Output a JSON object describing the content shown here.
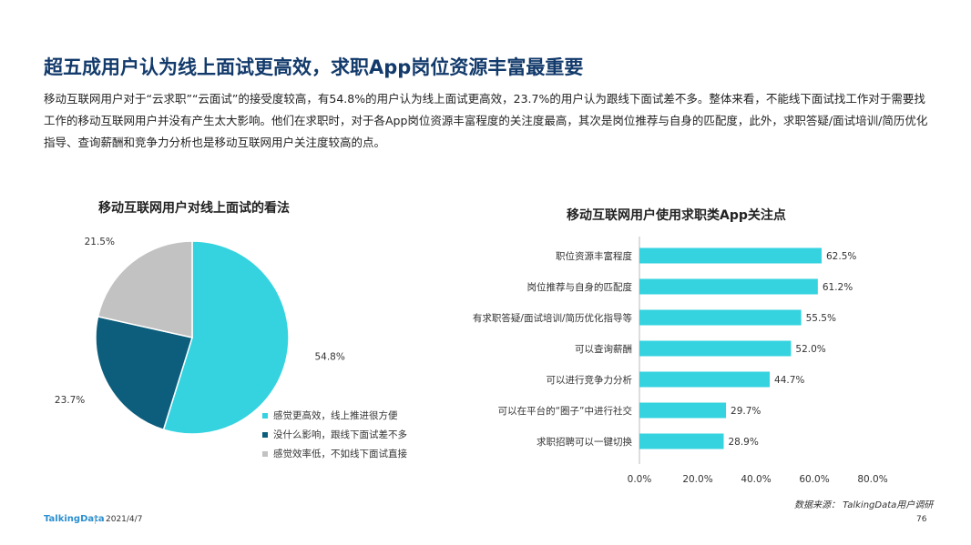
{
  "header": {
    "title": "超五成用户认为线上面试更高效，求职App岗位资源丰富最重要",
    "description": "移动互联网用户对于“云求职”“云面试”的接受度较高，有54.8%的用户认为线上面试更高效，23.7%的用户认为跟线下面试差不多。整体来看，不能线下面试找工作对于需要找工作的移动互联网用户并没有产生太大影响。他们在求职时，对于各App岗位资源丰富程度的关注度最高，其次是岗位推荐与自身的匹配度，此外，求职答疑/面试培训/简历优化指导、查询薪酬和竞争力分析也是移动互联网用户关注度较高的点。"
  },
  "chart_data": [
    {
      "type": "pie",
      "title": "移动互联网用户对线上面试的看法",
      "labels": [
        "感觉更高效，线上推进很方便",
        "没什么影响，跟线下面试差不多",
        "感觉效率低，不如线下面试直接"
      ],
      "values": [
        54.8,
        23.7,
        21.5
      ],
      "value_labels": [
        "54.8%",
        "23.7%",
        "21.5%"
      ],
      "colors": [
        "#34d3df",
        "#0c5e7c",
        "#c2c2c2"
      ],
      "legend_position": "bottom-right"
    },
    {
      "type": "bar",
      "orientation": "horizontal",
      "title": "移动互联网用户使用求职类App关注点",
      "categories": [
        "职位资源丰富程度",
        "岗位推荐与自身的匹配度",
        "有求职答疑/面试培训/简历优化指导等",
        "可以查询薪酬",
        "可以进行竞争力分析",
        "可以在平台的“圈子”中进行社交",
        "求职招聘可以一键切换"
      ],
      "values": [
        62.5,
        61.2,
        55.5,
        52.0,
        44.7,
        29.7,
        28.9
      ],
      "value_labels": [
        "62.5%",
        "61.2%",
        "55.5%",
        "52.0%",
        "44.7%",
        "29.7%",
        "28.9%"
      ],
      "xlim": [
        0,
        80
      ],
      "x_ticks": [
        "0.0%",
        "20.0%",
        "40.0%",
        "60.0%",
        "80.0%"
      ],
      "color": "#34d3df",
      "grid": false
    }
  ],
  "source": "数据来源： TalkingData用户调研",
  "footer": {
    "logo": "TalkingData",
    "date": "2021/4/7",
    "page": "76"
  }
}
